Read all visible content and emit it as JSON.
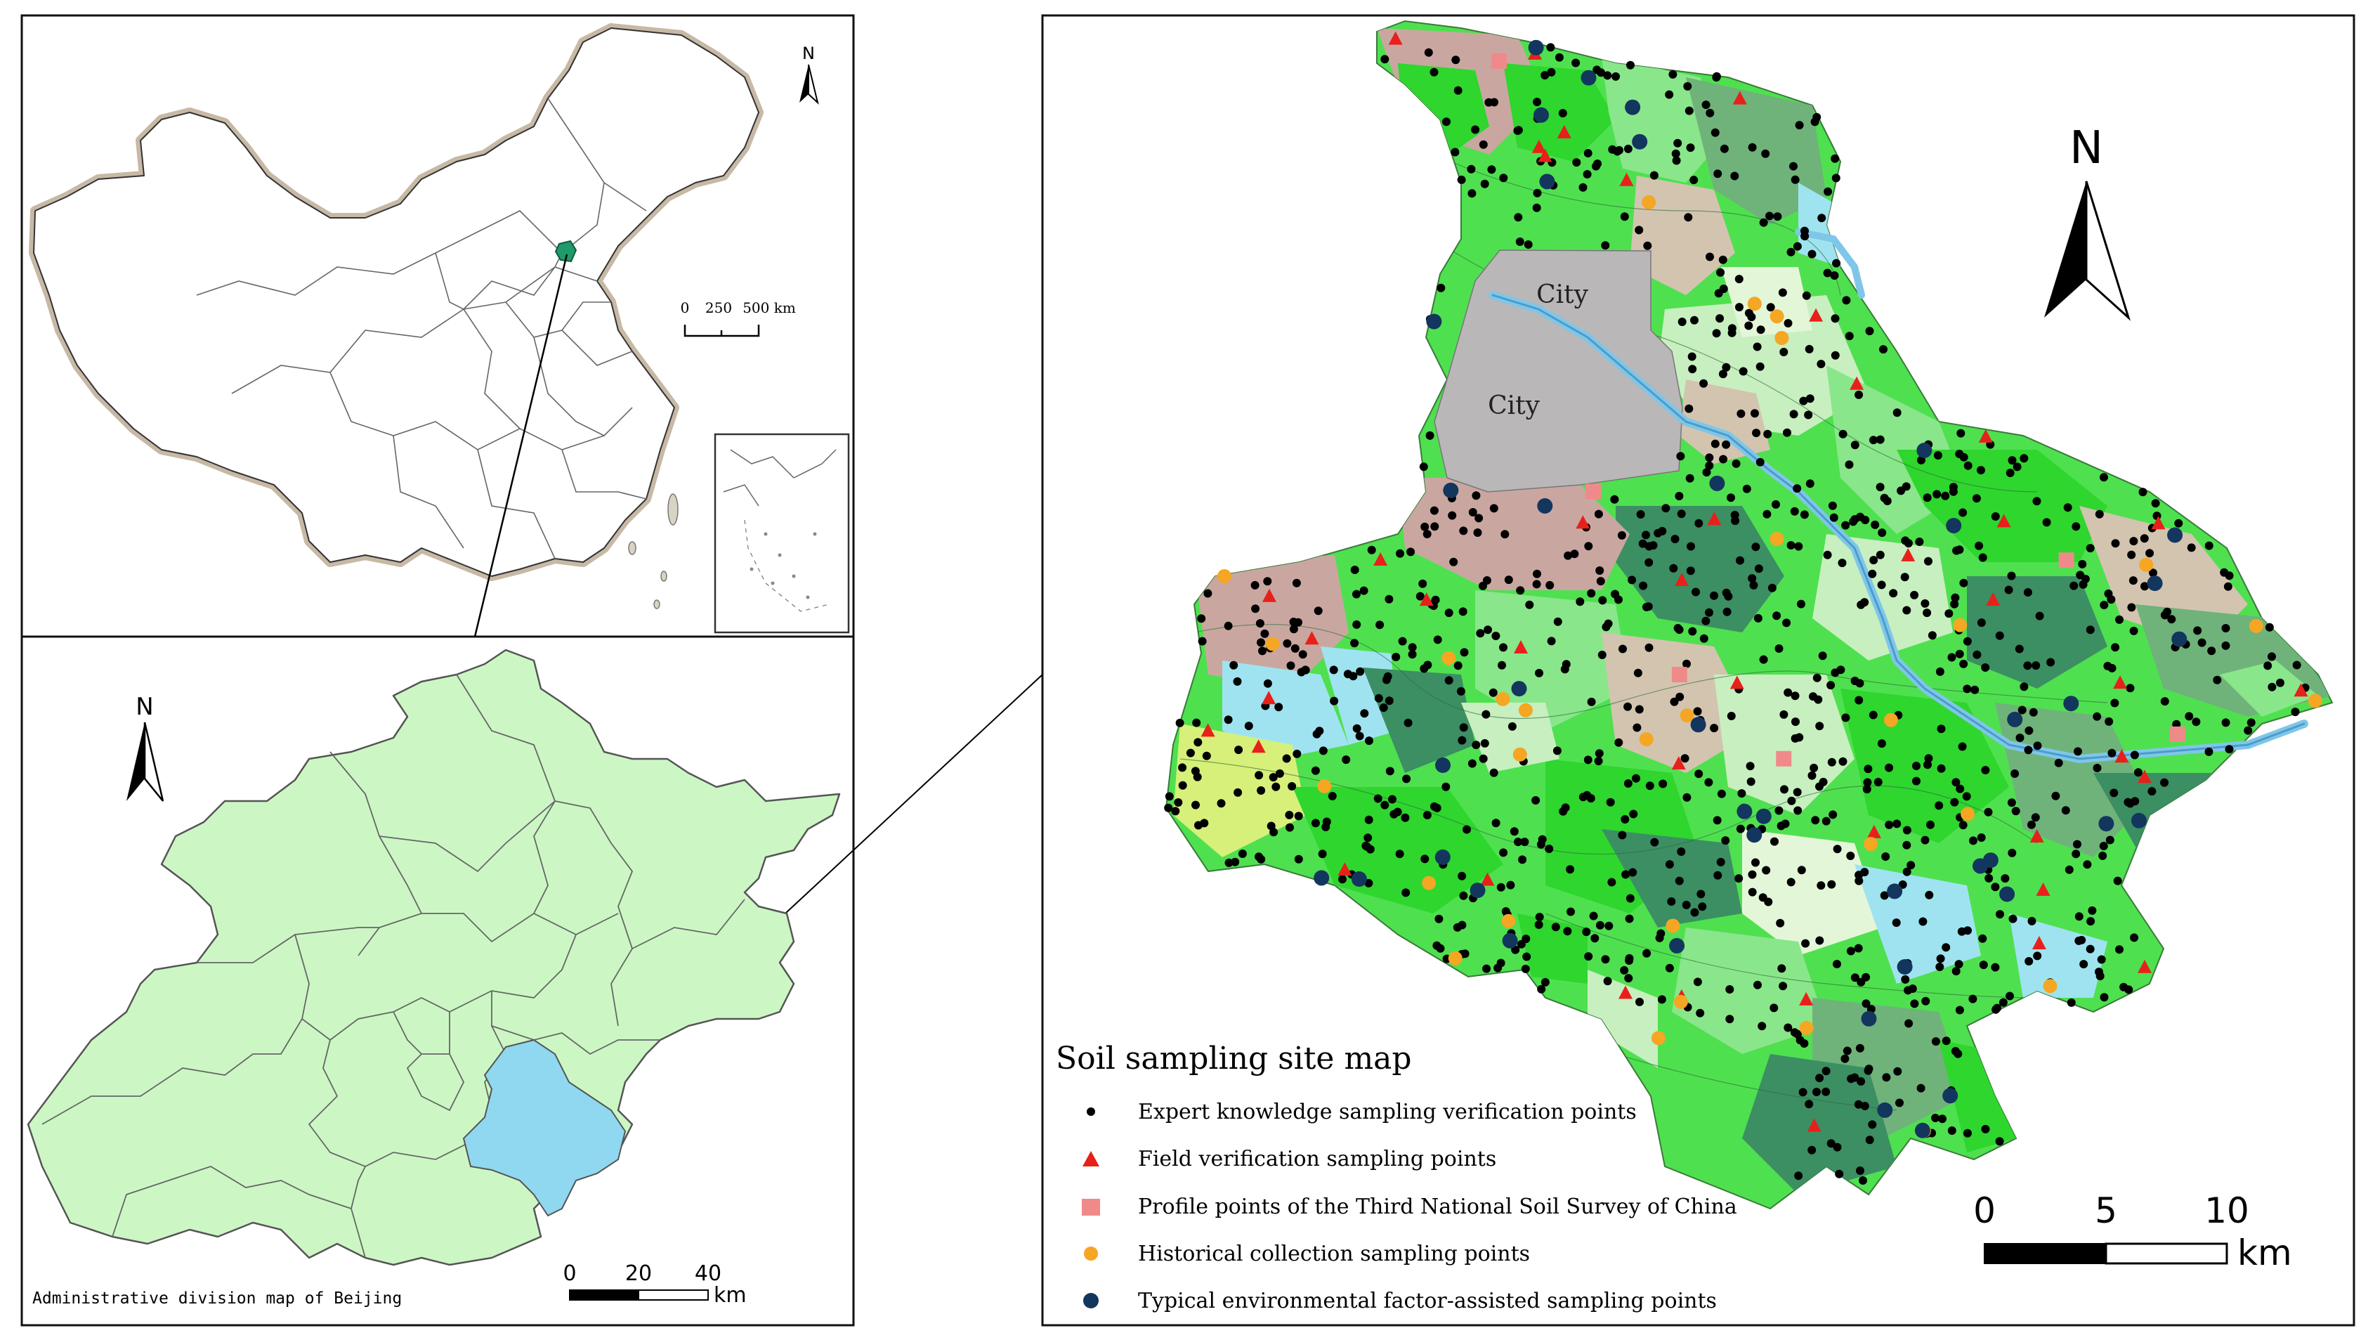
{
  "china_map": {
    "north": "N",
    "scale_labels": [
      "0",
      "250",
      "500 km"
    ]
  },
  "beijing_map": {
    "north": "N",
    "caption": "Administrative division map of Beijing",
    "scale_labels": [
      "0",
      "20",
      "40"
    ],
    "scale_unit": "km",
    "colors": {
      "districts": "#ccf7c4",
      "highlight": "#8fd8f0"
    }
  },
  "soil_map": {
    "title": "Soil sampling site map",
    "north": "N",
    "city_labels": [
      "City",
      "City"
    ],
    "scale_labels": [
      "0",
      "5",
      "10"
    ],
    "scale_unit": "km",
    "legend": [
      {
        "label": "Expert knowledge sampling verification points",
        "symbol": "black-dot",
        "color": "#000000"
      },
      {
        "label": "Field verification sampling points",
        "symbol": "red-triangle",
        "color": "#e8201b"
      },
      {
        "label": "Profile points of the Third National Soil Survey of China",
        "symbol": "pink-square",
        "color": "#f08a8a"
      },
      {
        "label": "Historical collection sampling points",
        "symbol": "orange-dot",
        "color": "#f5a623"
      },
      {
        "label": "Typical environmental factor-assisted sampling points",
        "symbol": "navy-dot",
        "color": "#13365e"
      }
    ],
    "colors": {
      "city": "#b9b7b8",
      "river": "#7fc6e8",
      "soil_classes": [
        "#2ed62e",
        "#4fe04f",
        "#8ae68a",
        "#c8efc0",
        "#6fb37a",
        "#3c8f62",
        "#d3c4b0",
        "#c9a7a0",
        "#9fe3f0",
        "#d7f07a",
        "#e3f7d8"
      ]
    }
  }
}
